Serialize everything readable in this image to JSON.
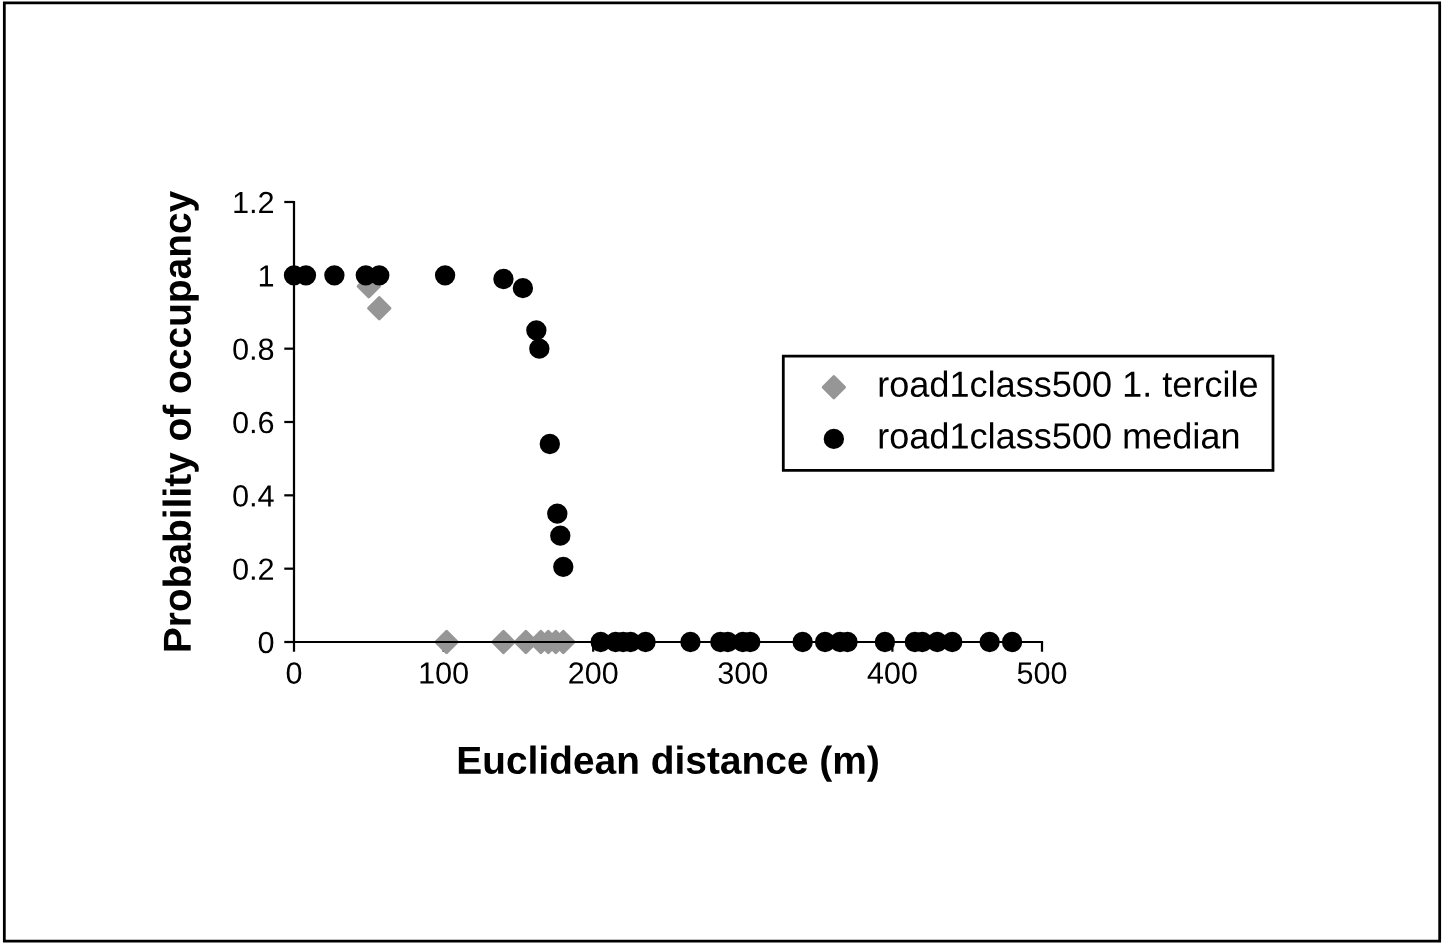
{
  "chart_data": {
    "type": "scatter",
    "xlabel": "Euclidean distance (m)",
    "ylabel": "Probability of occupancy",
    "series": [
      {
        "name": "road1class500 1. tercile",
        "color": "#969696",
        "marker": "diamond",
        "x": [
          50,
          57,
          102,
          140,
          155,
          165,
          170,
          175,
          180
        ],
        "values": [
          0.97,
          0.91,
          0,
          0,
          0,
          0,
          0,
          0,
          0
        ]
      },
      {
        "name": "road1class500 median",
        "color": "#000000",
        "marker": "circle",
        "x": [
          0,
          8,
          27,
          48,
          57,
          101,
          140,
          153,
          162,
          164,
          171,
          176,
          178,
          180,
          205,
          215,
          220,
          225,
          235,
          265,
          285,
          290,
          300,
          305,
          340,
          355,
          365,
          370,
          395,
          415,
          420,
          430,
          440,
          465,
          480
        ],
        "values": [
          1,
          1,
          1,
          1,
          1,
          1,
          0.99,
          0.965,
          0.85,
          0.8,
          0.54,
          0.35,
          0.29,
          0.205,
          0,
          0,
          0,
          0,
          0,
          0,
          0,
          0,
          0,
          0,
          0,
          0,
          0,
          0,
          0,
          0,
          0,
          0,
          0,
          0,
          0
        ]
      }
    ],
    "xlim": [
      0,
      500
    ],
    "xticks": [
      0,
      100,
      200,
      300,
      400,
      500
    ],
    "ylim": [
      0,
      1.2
    ],
    "yticks": [
      0,
      0.2,
      0.4,
      0.6,
      0.8,
      1,
      1.2
    ],
    "grid": false,
    "legend": "right"
  }
}
